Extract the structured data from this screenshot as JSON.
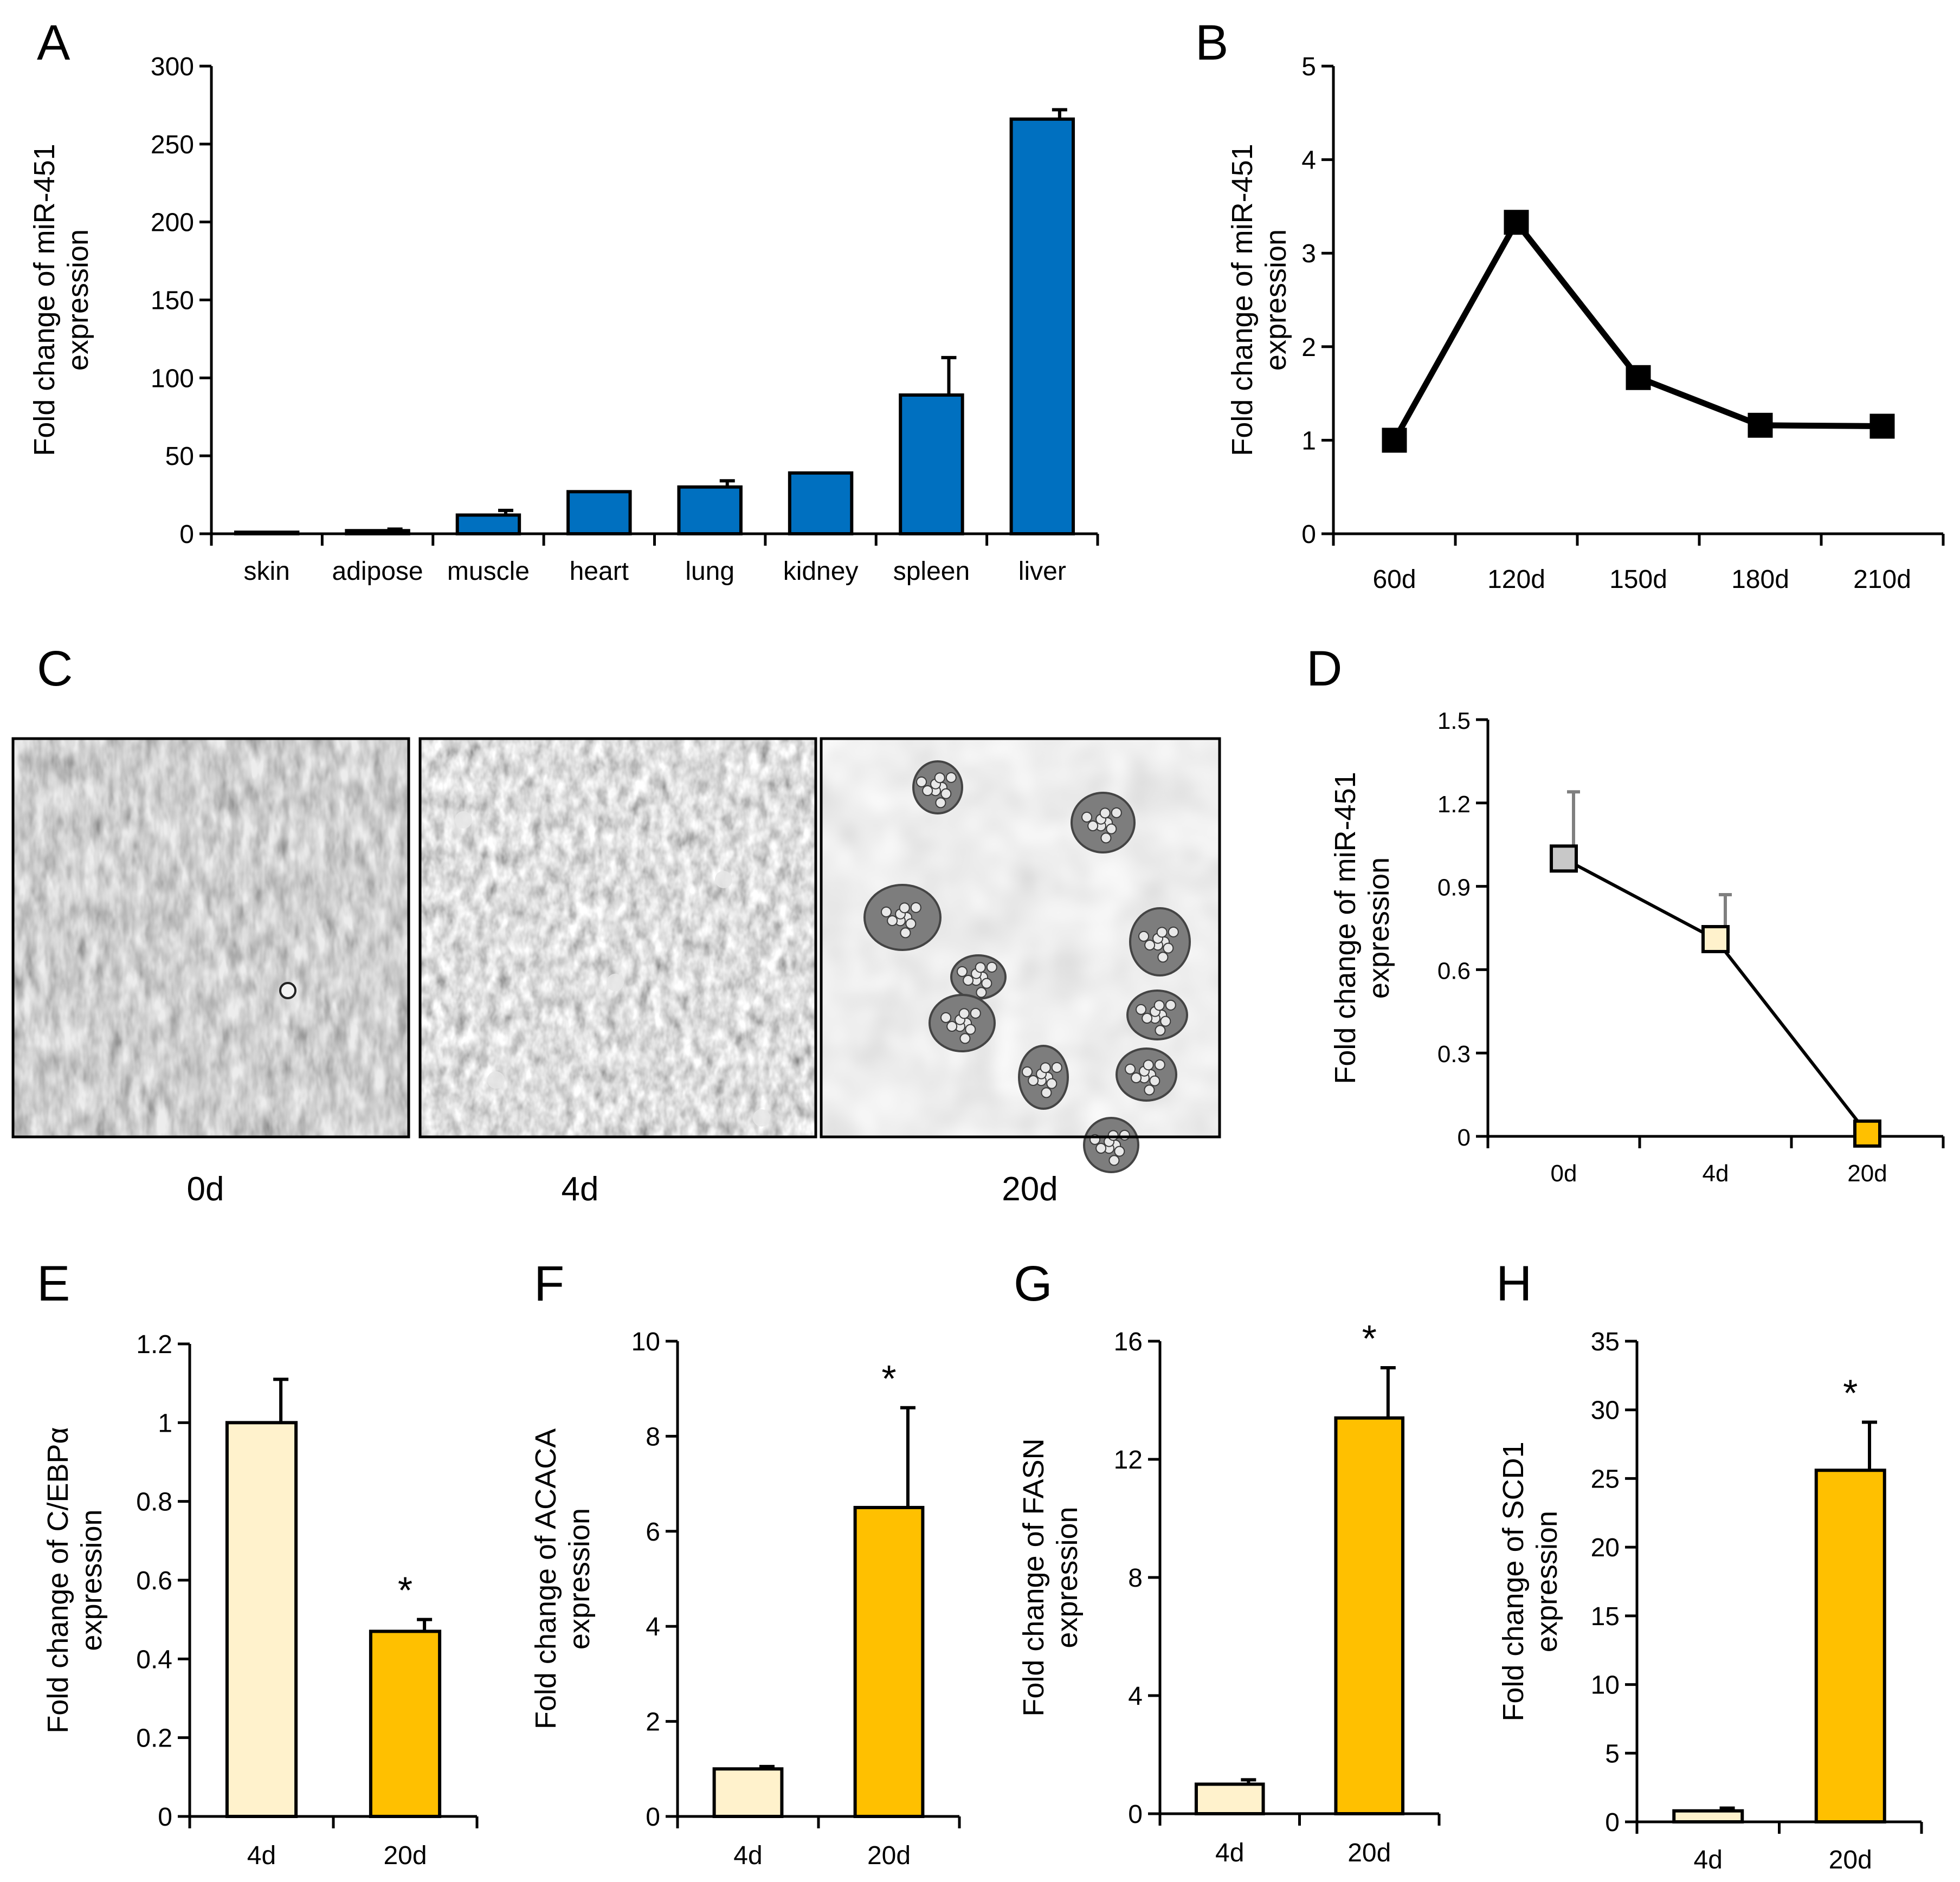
{
  "colors": {
    "blue_bar": "#0070C0",
    "light_bar": "#FFF2CC",
    "gold_bar": "#FFC000",
    "grey_marker": "#C8C8C8",
    "black": "#000000",
    "err_grey": "#7F7F7F"
  },
  "panel_c": {
    "letter": "C",
    "images": [
      {
        "label": "0d",
        "description": "phase-contrast micrograph, confluent fibroblast-like preadipocytes"
      },
      {
        "label": "4d",
        "description": "phase-contrast micrograph, early differentiating cells"
      },
      {
        "label": "20d",
        "description": "brightfield micrograph, mature adipocytes with lipid droplets"
      }
    ]
  },
  "chart_data": [
    {
      "panel": "A",
      "type": "bar",
      "title": "",
      "xlabel": "",
      "ylabel": "Fold change of miR-451 expression",
      "ylabel_lines": [
        "Fold change of miR-451",
        "expression"
      ],
      "categories": [
        "skin",
        "adipose",
        "muscle",
        "heart",
        "lung",
        "kidney",
        "spleen",
        "liver"
      ],
      "values": [
        1,
        2,
        12,
        27,
        30,
        39,
        89,
        266
      ],
      "errors": [
        0,
        1,
        3,
        0,
        4,
        0,
        24,
        6
      ],
      "yticks": [
        "0",
        "50",
        "100",
        "150",
        "200",
        "250",
        "300"
      ],
      "ylim": [
        0,
        300
      ],
      "color": "#0070C0"
    },
    {
      "panel": "B",
      "type": "line",
      "title": "",
      "xlabel": "",
      "ylabel": "Fold change of miR-451 expression",
      "ylabel_lines": [
        "Fold change of miR-451",
        "expression"
      ],
      "categories": [
        "60d",
        "120d",
        "150d",
        "180d",
        "210d"
      ],
      "values": [
        1.0,
        3.33,
        1.67,
        1.16,
        1.15
      ],
      "yticks": [
        "0",
        "1",
        "2",
        "3",
        "4",
        "5"
      ],
      "ylim": [
        0,
        5
      ],
      "marker": "square",
      "color": "#000000"
    },
    {
      "panel": "D",
      "type": "line",
      "title": "",
      "xlabel": "",
      "ylabel": "Fold change of miR-451 expression",
      "ylabel_lines": [
        "Fold change of miR-451",
        "expression"
      ],
      "categories": [
        "0d",
        "4d",
        "20d"
      ],
      "values": [
        1.0,
        0.71,
        0.01
      ],
      "errors": [
        0.24,
        0.16,
        0.0
      ],
      "marker_colors": [
        "#C8C8C8",
        "#FFF2CC",
        "#FFC000"
      ],
      "yticks": [
        "0",
        "0.3",
        "0.6",
        "0.9",
        "1.2",
        "1.5"
      ],
      "ylim": [
        0,
        1.5
      ],
      "marker": "square"
    },
    {
      "panel": "E",
      "type": "bar",
      "title": "",
      "xlabel": "",
      "ylabel": "Fold change of C/EBPα expression",
      "ylabel_lines": [
        "Fold change of C/EBPα",
        "expression"
      ],
      "categories": [
        "4d",
        "20d"
      ],
      "values": [
        1.0,
        0.47
      ],
      "errors": [
        0.11,
        0.03
      ],
      "colors": [
        "#FFF2CC",
        "#FFC000"
      ],
      "significance": [
        "",
        "*"
      ],
      "yticks": [
        "0",
        "0.2",
        "0.4",
        "0.6",
        "0.8",
        "1",
        "1.2"
      ],
      "ylim": [
        0,
        1.2
      ]
    },
    {
      "panel": "F",
      "type": "bar",
      "title": "",
      "xlabel": "",
      "ylabel": "Fold change of ACACA expression",
      "ylabel_lines": [
        "Fold change of ACACA",
        "expression"
      ],
      "categories": [
        "4d",
        "20d"
      ],
      "values": [
        1.0,
        6.5
      ],
      "errors": [
        0.05,
        2.1
      ],
      "colors": [
        "#FFF2CC",
        "#FFC000"
      ],
      "significance": [
        "",
        "*"
      ],
      "yticks": [
        "0",
        "2",
        "4",
        "6",
        "8",
        "10"
      ],
      "ylim": [
        0,
        10
      ]
    },
    {
      "panel": "G",
      "type": "bar",
      "title": "",
      "xlabel": "",
      "ylabel": "Fold change of FASN expression",
      "ylabel_lines": [
        "Fold change of FASN",
        "expression"
      ],
      "categories": [
        "4d",
        "20d"
      ],
      "values": [
        1.0,
        13.4
      ],
      "errors": [
        0.15,
        1.7
      ],
      "colors": [
        "#FFF2CC",
        "#FFC000"
      ],
      "significance": [
        "",
        "*"
      ],
      "yticks": [
        "0",
        "4",
        "8",
        "12",
        "16"
      ],
      "ylim": [
        0,
        16
      ]
    },
    {
      "panel": "H",
      "type": "bar",
      "title": "",
      "xlabel": "",
      "ylabel": "Fold change of SCD1 expression",
      "ylabel_lines": [
        "Fold change of SCD1",
        "expression"
      ],
      "categories": [
        "4d",
        "20d"
      ],
      "values": [
        0.8,
        25.6
      ],
      "errors": [
        0.2,
        3.5
      ],
      "colors": [
        "#FFF2CC",
        "#FFC000"
      ],
      "significance": [
        "",
        "*"
      ],
      "yticks": [
        "0",
        "5",
        "10",
        "15",
        "20",
        "25",
        "30",
        "35"
      ],
      "ylim": [
        0,
        35
      ]
    }
  ]
}
